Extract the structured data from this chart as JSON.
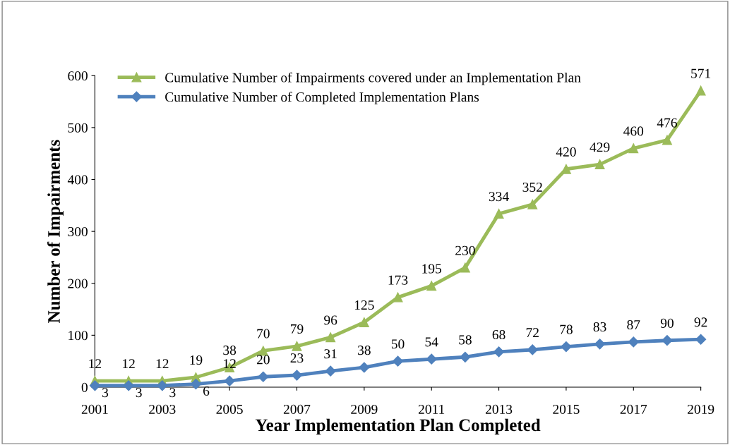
{
  "chart_data": {
    "type": "line",
    "xlabel": "Year Implementation Plan Completed",
    "ylabel": "Number of Impairments",
    "x": [
      2001,
      2002,
      2003,
      2004,
      2005,
      2006,
      2007,
      2008,
      2009,
      2010,
      2011,
      2012,
      2013,
      2014,
      2015,
      2016,
      2017,
      2018,
      2019
    ],
    "series": [
      {
        "name": "Cumulative Number of Impairments covered under an Implementation Plan",
        "color": "#9bbb59",
        "marker": "triangle",
        "values": [
          12,
          12,
          12,
          19,
          38,
          70,
          79,
          96,
          125,
          173,
          195,
          230,
          334,
          352,
          420,
          429,
          460,
          476,
          571
        ]
      },
      {
        "name": "Cumulative Number of Completed Implementation Plans",
        "color": "#4f81bd",
        "marker": "diamond",
        "values": [
          3,
          3,
          3,
          6,
          12,
          20,
          23,
          31,
          38,
          50,
          54,
          58,
          68,
          72,
          78,
          83,
          87,
          90,
          92
        ]
      }
    ],
    "xlim": [
      2001,
      2019
    ],
    "xticks": [
      2001,
      2003,
      2005,
      2007,
      2009,
      2011,
      2013,
      2015,
      2017,
      2019
    ],
    "ylim": [
      0,
      600
    ],
    "yticks": [
      0,
      100,
      200,
      300,
      400,
      500,
      600
    ],
    "data_labels": true,
    "legend": "top left",
    "grid": false
  }
}
